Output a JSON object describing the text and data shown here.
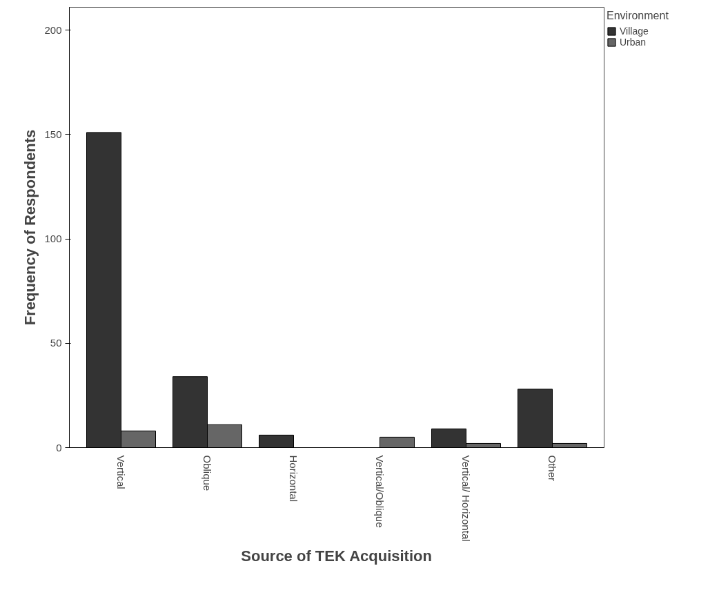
{
  "chart_data": {
    "type": "bar",
    "xlabel": "Source of TEK Acquisition",
    "ylabel": "Frequency of Respondents",
    "legend_title": "Environment",
    "categories": [
      "Vertical",
      "Oblique",
      "Horizontal",
      "Vertical/Oblique",
      "Vertical/ Horizontal",
      "Other"
    ],
    "series": [
      {
        "name": "Village",
        "color": "#333333",
        "values": [
          151,
          34,
          6,
          0,
          9,
          28
        ]
      },
      {
        "name": "Urban",
        "color": "#666666",
        "values": [
          8,
          11,
          0,
          5,
          2,
          2
        ]
      }
    ],
    "ylim": [
      0,
      211
    ],
    "yticks": [
      0,
      50,
      100,
      150,
      200
    ],
    "grid": false,
    "legend": "top right"
  }
}
